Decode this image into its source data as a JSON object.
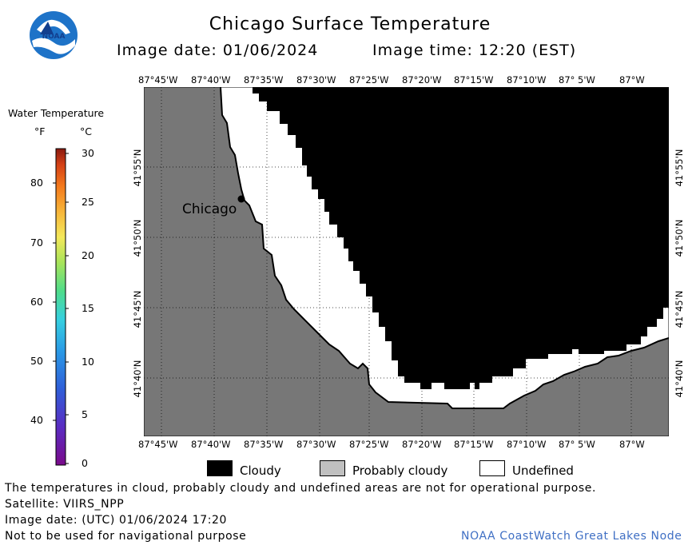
{
  "header": {
    "title": "Chicago Surface Temperature",
    "image_date": "Image date: 01/06/2024",
    "image_time": "Image time: 12:20 (EST)"
  },
  "logo": {
    "text": "NOAA",
    "colors": {
      "primary": "#1e73c8",
      "dark": "#123f8e",
      "light": "#ffffff"
    }
  },
  "colorbar": {
    "title": "Water Temperature",
    "unit_f": "°F",
    "unit_c": "°C",
    "f_ticks": [
      "80",
      "70",
      "60",
      "50",
      "40"
    ],
    "c_ticks": [
      "30",
      "25",
      "20",
      "15",
      "10",
      "5",
      "0"
    ]
  },
  "map": {
    "top_lon_labels": [
      "87°45'W",
      "87°40'W",
      "87°35'W",
      "87°30'W",
      "87°25'W",
      "87°20'W",
      "87°15'W",
      "87°10'W",
      "87° 5'W",
      "87°W"
    ],
    "bottom_lon_labels": [
      "87°45'W",
      "87°40'W",
      "87°35'W",
      "87°30'W",
      "87°25'W",
      "87°20'W",
      "87°15'W",
      "87°10'W",
      "87° 5'W",
      "87°W"
    ],
    "left_lat_labels": [
      "41°55'N",
      "41°50'N",
      "41°45'N",
      "41°40'N"
    ],
    "right_lat_labels": [
      "41°55'N",
      "41°50'N",
      "41°45'N",
      "41°40'N"
    ],
    "city_label": "Chicago",
    "colors": {
      "land": "#777777",
      "cloudy": "#000000",
      "undefined": "#ffffff",
      "probably_cloudy": "#c0c0c0"
    }
  },
  "legend": {
    "cloudy": "Cloudy",
    "probably_cloudy": "Probably cloudy",
    "undefined": "Undefined"
  },
  "footer": {
    "line1": "The temperatures in cloud, probably cloudy and undefined areas are not for operational purpose.",
    "line2": "Satellite: VIIRS_NPP",
    "line3": "Image date: (UTC) 01/06/2024  17:20",
    "line4": "Not to be used for navigational purpose",
    "credit": "NOAA CoastWatch Great Lakes Node"
  }
}
